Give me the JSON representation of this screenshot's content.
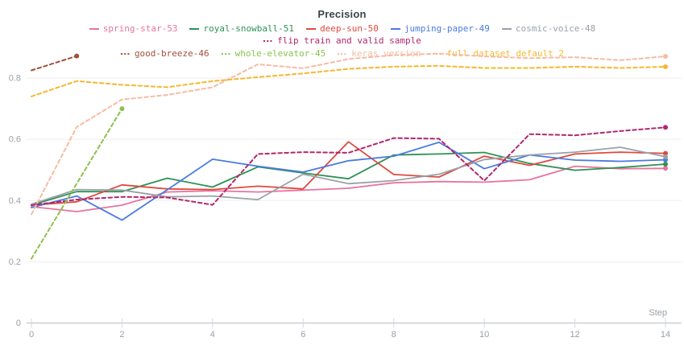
{
  "chart_data": {
    "type": "line",
    "title": "Precision",
    "xlabel": "Step",
    "ylabel": "",
    "xlim": [
      0,
      14
    ],
    "ylim": [
      0,
      0.9
    ],
    "grid": true,
    "legend_position": "top",
    "x_tick_values": [
      0,
      2,
      4,
      6,
      8,
      10,
      12,
      14
    ],
    "x_tick_labels": [
      "0",
      "2",
      "4",
      "6",
      "8",
      "10",
      "12",
      "14"
    ],
    "y_tick_values": [
      0,
      0.2,
      0.4,
      0.6,
      0.8
    ],
    "y_tick_labels": [
      "0",
      "0.2",
      "0.4",
      "0.6",
      "0.8"
    ],
    "series": [
      {
        "name": "spring-star-53",
        "color": "#e8739e",
        "style": "solid",
        "x": [
          0,
          1,
          2,
          3,
          4,
          5,
          6,
          7,
          8,
          9,
          10,
          11,
          12,
          13,
          14
        ],
        "values": [
          0.38,
          0.364,
          0.385,
          0.428,
          0.432,
          0.428,
          0.434,
          0.44,
          0.458,
          0.462,
          0.46,
          0.468,
          0.512,
          0.504,
          0.505
        ]
      },
      {
        "name": "royal-snowball-51",
        "color": "#2e9254",
        "style": "solid",
        "x": [
          0,
          1,
          2,
          3,
          4,
          5,
          6,
          7,
          8,
          9,
          10,
          11,
          12,
          13,
          14
        ],
        "values": [
          0.385,
          0.429,
          0.429,
          0.473,
          0.444,
          0.51,
          0.49,
          0.471,
          0.549,
          0.552,
          0.557,
          0.521,
          0.499,
          0.508,
          0.519
        ]
      },
      {
        "name": "deep-sun-50",
        "color": "#de4a3f",
        "style": "solid",
        "x": [
          0,
          1,
          2,
          3,
          4,
          5,
          6,
          7,
          8,
          9,
          10,
          11,
          12,
          13,
          14
        ],
        "values": [
          0.385,
          0.396,
          0.451,
          0.438,
          0.436,
          0.447,
          0.438,
          0.592,
          0.485,
          0.477,
          0.545,
          0.515,
          0.552,
          0.558,
          0.554
        ]
      },
      {
        "name": "jumping-paper-49",
        "color": "#4a7be0",
        "style": "solid",
        "x": [
          0,
          1,
          2,
          3,
          4,
          5,
          6,
          7,
          8,
          9,
          10,
          11,
          12,
          13,
          14
        ],
        "values": [
          0.377,
          0.415,
          0.336,
          0.435,
          0.535,
          0.512,
          0.493,
          0.53,
          0.545,
          0.59,
          0.504,
          0.549,
          0.532,
          0.528,
          0.533
        ]
      },
      {
        "name": "cosmic-voice-48",
        "color": "#9ba1a8",
        "style": "solid",
        "x": [
          0,
          1,
          2,
          3,
          4,
          5,
          6,
          7,
          8,
          9,
          10,
          11,
          12,
          13,
          14
        ],
        "values": [
          0.388,
          0.436,
          0.434,
          0.412,
          0.415,
          0.403,
          0.486,
          0.455,
          0.465,
          0.486,
          0.534,
          0.549,
          0.558,
          0.574,
          0.543
        ]
      },
      {
        "name": "flip train and valid sample",
        "color": "#b2276f",
        "style": "dashed",
        "x": [
          0,
          1,
          2,
          3,
          4,
          5,
          6,
          7,
          8,
          9,
          10,
          11,
          12,
          13,
          14
        ],
        "values": [
          0.385,
          0.403,
          0.412,
          0.41,
          0.386,
          0.552,
          0.558,
          0.556,
          0.604,
          0.602,
          0.465,
          0.617,
          0.613,
          0.627,
          0.639
        ]
      },
      {
        "name": "good-breeze-46",
        "color": "#a14f3d",
        "style": "dashed",
        "x": [
          0,
          1
        ],
        "values": [
          0.825,
          0.872
        ]
      },
      {
        "name": "whole-elevator-45",
        "color": "#8ac24e",
        "style": "dashed",
        "x": [
          0,
          1,
          2
        ],
        "values": [
          0.21,
          0.455,
          0.7
        ]
      },
      {
        "name": "keras version",
        "color": "#f6bca4",
        "style": "dashed",
        "x": [
          0,
          1,
          2,
          3,
          4,
          5,
          6,
          7,
          8,
          9,
          10,
          11,
          12,
          13,
          14
        ],
        "values": [
          0.355,
          0.64,
          0.73,
          0.745,
          0.77,
          0.845,
          0.832,
          0.862,
          0.875,
          0.88,
          0.871,
          0.865,
          0.868,
          0.858,
          0.871
        ]
      },
      {
        "name": "full dataset default 2",
        "color": "#f5b82e",
        "style": "dashed",
        "x": [
          0,
          1,
          2,
          3,
          4,
          5,
          6,
          7,
          8,
          9,
          10,
          11,
          12,
          13,
          14
        ],
        "values": [
          0.74,
          0.79,
          0.778,
          0.77,
          0.79,
          0.803,
          0.815,
          0.83,
          0.837,
          0.84,
          0.833,
          0.833,
          0.837,
          0.833,
          0.837
        ]
      }
    ]
  }
}
